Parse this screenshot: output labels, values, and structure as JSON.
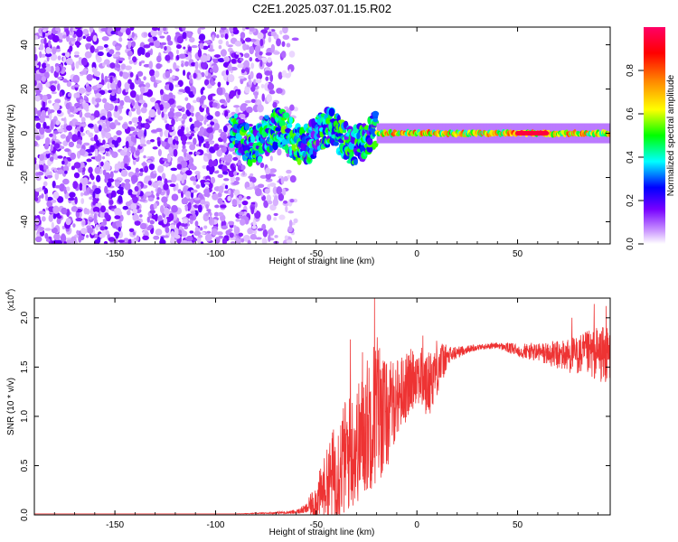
{
  "title": "C2E1.2025.037.01.15.R02",
  "chart_data": [
    {
      "type": "heatmap",
      "xlabel": "Height of straight line (km)",
      "ylabel": "Frequency (Hz)",
      "xlim": [
        -190,
        96
      ],
      "ylim": [
        -50,
        48
      ],
      "xticks": [
        -150,
        -100,
        -50,
        0,
        50
      ],
      "yticks": [
        -40,
        -20,
        0,
        20,
        40
      ],
      "colorbar": {
        "label": "Normalized spectral amplitude",
        "range": [
          0.0,
          1.0
        ],
        "ticks": [
          0.0,
          0.2,
          0.4,
          0.6,
          0.8
        ],
        "colormap": [
          "#ffffff",
          "#cc99ff",
          "#7700ff",
          "#0000ff",
          "#00ffff",
          "#00ff00",
          "#ffff00",
          "#ff8800",
          "#ff0000",
          "#ff0066"
        ]
      },
      "regions": [
        {
          "x_range": [
            -190,
            -85
          ],
          "freq_range": [
            -50,
            48
          ],
          "amplitude": 0.15,
          "pattern": "broadband speckle"
        },
        {
          "x_range": [
            -92,
            -20
          ],
          "freq_center": 0,
          "freq_halfwidth": 8,
          "amplitude": 0.35
        },
        {
          "x_range": [
            -20,
            96
          ],
          "freq_center": 0,
          "freq_halfwidth": 2.5,
          "amplitude": 0.65
        },
        {
          "x_range": [
            50,
            65
          ],
          "freq_center": 0,
          "freq_halfwidth": 1.5,
          "amplitude": 0.95
        }
      ]
    },
    {
      "type": "line",
      "xlabel": "Height of straight line (km)",
      "ylabel": "SNR (10 * v/v)",
      "y_multiplier": "(x10^4)",
      "xlim": [
        -190,
        96
      ],
      "ylim": [
        0,
        2.2
      ],
      "xticks": [
        -150,
        -100,
        -50,
        0,
        50
      ],
      "yticks": [
        0.0,
        0.5,
        1.0,
        1.5,
        2.0
      ],
      "series": [
        {
          "color": "#ee3333",
          "envelope_x": [
            -190,
            -90,
            -70,
            -60,
            -55,
            -50,
            -45,
            -40,
            -35,
            -30,
            -25,
            -20,
            -15,
            -10,
            -5,
            0,
            5,
            10,
            15,
            20,
            25,
            30,
            40,
            50,
            60,
            70,
            80,
            90,
            96
          ],
          "envelope_y": [
            0.01,
            0.01,
            0.02,
            0.03,
            0.06,
            0.15,
            0.3,
            0.45,
            0.6,
            0.7,
            0.9,
            1.1,
            1.0,
            1.2,
            1.3,
            1.45,
            1.3,
            1.5,
            1.6,
            1.65,
            1.68,
            1.7,
            1.72,
            1.67,
            1.65,
            1.62,
            1.62,
            1.64,
            1.6
          ],
          "noise_amplitude": [
            0,
            0,
            0.01,
            0.02,
            0.05,
            0.2,
            0.35,
            0.55,
            0.6,
            0.6,
            0.7,
            0.8,
            0.55,
            0.4,
            0.35,
            0.3,
            0.35,
            0.3,
            0.12,
            0.06,
            0.04,
            0.03,
            0.03,
            0.07,
            0.1,
            0.15,
            0.2,
            0.28,
            0.3
          ],
          "peaks": [
            [
              -21,
              2.2
            ],
            [
              -33,
              1.78
            ],
            [
              -27,
              1.65
            ],
            [
              3,
              1.82
            ],
            [
              88,
              2.14
            ],
            [
              94,
              2.12
            ],
            [
              77,
              2.0
            ]
          ]
        }
      ]
    }
  ]
}
